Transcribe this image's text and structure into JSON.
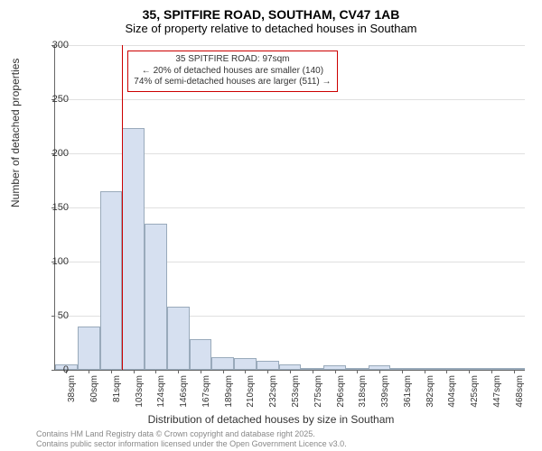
{
  "title": "35, SPITFIRE ROAD, SOUTHAM, CV47 1AB",
  "subtitle": "Size of property relative to detached houses in Southam",
  "ylabel": "Number of detached properties",
  "xlabel": "Distribution of detached houses by size in Southam",
  "chart": {
    "type": "histogram",
    "ylim": [
      0,
      300
    ],
    "ytick_step": 50,
    "bar_color": "#d6e0f0",
    "bar_border": "#99aabb",
    "grid_color": "#e0e0e0",
    "background_color": "#ffffff",
    "marker_color": "#cc0000",
    "marker_x_index": 3.0,
    "x_labels": [
      "38sqm",
      "60sqm",
      "81sqm",
      "103sqm",
      "124sqm",
      "146sqm",
      "167sqm",
      "189sqm",
      "210sqm",
      "232sqm",
      "253sqm",
      "275sqm",
      "296sqm",
      "318sqm",
      "339sqm",
      "361sqm",
      "382sqm",
      "404sqm",
      "425sqm",
      "447sqm",
      "468sqm"
    ],
    "values": [
      5,
      40,
      165,
      223,
      135,
      58,
      28,
      12,
      11,
      8,
      5,
      2,
      4,
      2,
      4,
      2,
      0,
      0,
      0,
      0,
      2
    ]
  },
  "annotation": {
    "line1": "35 SPITFIRE ROAD: 97sqm",
    "line2": "← 20% of detached houses are smaller (140)",
    "line3": "74% of semi-detached houses are larger (511) →"
  },
  "footer": {
    "line1": "Contains HM Land Registry data © Crown copyright and database right 2025.",
    "line2": "Contains public sector information licensed under the Open Government Licence v3.0."
  }
}
